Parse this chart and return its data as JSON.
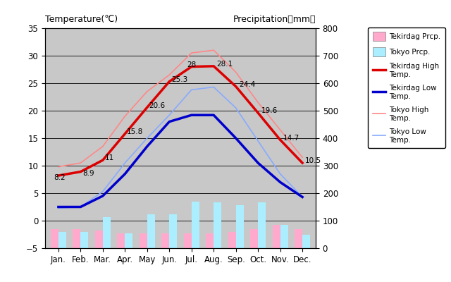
{
  "months": [
    "Jan.",
    "Feb.",
    "Mar.",
    "Apr.",
    "May",
    "Jun.",
    "Jul.",
    "Aug.",
    "Sep.",
    "Oct.",
    "Nov.",
    "Dec."
  ],
  "tekirdag_high": [
    8.2,
    8.9,
    11,
    15.8,
    20.6,
    25.3,
    28,
    28.1,
    24.4,
    19.6,
    14.7,
    10.5
  ],
  "tekirdag_low": [
    2.5,
    2.5,
    4.5,
    8.5,
    13.5,
    18.0,
    19.2,
    19.2,
    15.0,
    10.5,
    7.0,
    4.3
  ],
  "tokyo_high": [
    9.8,
    10.5,
    13.5,
    19.0,
    23.5,
    26.5,
    30.5,
    31.0,
    27.0,
    21.5,
    16.5,
    11.5
  ],
  "tokyo_low": [
    2.3,
    2.5,
    5.3,
    10.5,
    15.0,
    19.2,
    23.8,
    24.3,
    20.5,
    14.5,
    8.5,
    4.3
  ],
  "tekirdag_precip_bar": [
    -1.5,
    -1.5,
    -1.8,
    -2.3,
    -2.3,
    -2.3,
    -2.3,
    -2.3,
    -2.0,
    -1.5,
    -0.8,
    -1.5
  ],
  "tokyo_precip_bar": [
    -2.0,
    -2.0,
    0.7,
    -2.3,
    1.2,
    1.2,
    3.5,
    3.3,
    2.8,
    3.3,
    -0.8,
    -2.5
  ],
  "title_left": "Temperature(℃)",
  "title_right": "Precipitation（mm）",
  "ylim_temp": [
    -5,
    35
  ],
  "ylim_precip": [
    0,
    800
  ],
  "bg_color": "#c8c8c8",
  "tekirdag_high_color": "#dd0000",
  "tekirdag_low_color": "#0000cc",
  "tokyo_high_color": "#ff8888",
  "tokyo_low_color": "#88aaff",
  "tekirdag_precip_color": "#ffaacc",
  "tokyo_precip_color": "#aaeeff",
  "ann_ha": [
    "right",
    "right",
    "left",
    "left",
    "left",
    "left",
    "right",
    "left",
    "left",
    "left",
    "left",
    "left"
  ],
  "ann_va": [
    "top",
    "top",
    "bottom",
    "bottom",
    "bottom",
    "bottom",
    "bottom",
    "bottom",
    "bottom",
    "bottom",
    "bottom",
    "bottom"
  ]
}
